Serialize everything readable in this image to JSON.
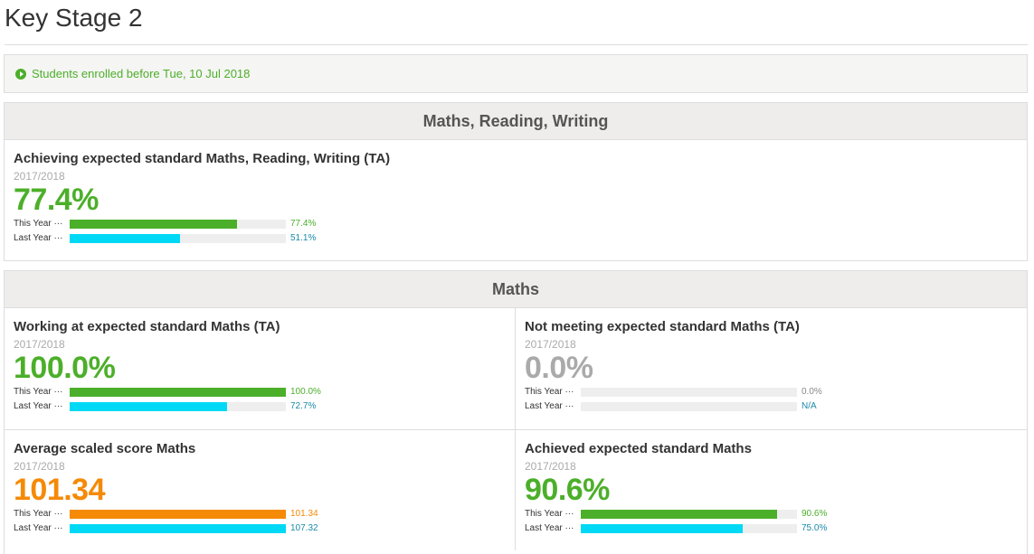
{
  "page_title": "Key Stage 2",
  "filter": {
    "label": "Students enrolled before Tue, 10 Jul 2018"
  },
  "sections": [
    {
      "title": "Maths, Reading, Writing",
      "cards": [
        {
          "title": "Achieving expected standard Maths, Reading, Writing (TA)",
          "year": "2017/2018",
          "value": "77.4%",
          "this_year": {
            "label": "This Year ···",
            "value_text": "77.4%",
            "fraction": 0.774
          },
          "last_year": {
            "label": "Last Year ···",
            "value_text": "51.1%",
            "fraction": 0.511
          }
        }
      ]
    },
    {
      "title": "Maths",
      "cards": [
        {
          "title": "Working at expected standard Maths (TA)",
          "year": "2017/2018",
          "value": "100.0%",
          "this_year": {
            "label": "This Year ···",
            "value_text": "100.0%",
            "fraction": 1.0
          },
          "last_year": {
            "label": "Last Year ···",
            "value_text": "72.7%",
            "fraction": 0.727
          }
        },
        {
          "title": "Not meeting expected standard Maths (TA)",
          "year": "2017/2018",
          "value": "0.0%",
          "this_year": {
            "label": "This Year ···",
            "value_text": "0.0%",
            "fraction": 0.0
          },
          "last_year": {
            "label": "Last Year ···",
            "value_text": "N/A",
            "fraction": 0.0
          }
        },
        {
          "title": "Average scaled score Maths",
          "year": "2017/2018",
          "value": "101.34",
          "this_year": {
            "label": "This Year ···",
            "value_text": "101.34",
            "fraction": 1.0
          },
          "last_year": {
            "label": "Last Year ···",
            "value_text": "107.32",
            "fraction": 1.0
          }
        },
        {
          "title": "Achieved expected standard Maths",
          "year": "2017/2018",
          "value": "90.6%",
          "this_year": {
            "label": "This Year ···",
            "value_text": "90.6%",
            "fraction": 0.906
          },
          "last_year": {
            "label": "Last Year ···",
            "value_text": "75.0%",
            "fraction": 0.75
          }
        }
      ]
    }
  ],
  "colors": {
    "green": "#4caf2a",
    "cyan": "#00d9f5",
    "orange": "#f58a07",
    "gray": "#aaaaaa"
  }
}
